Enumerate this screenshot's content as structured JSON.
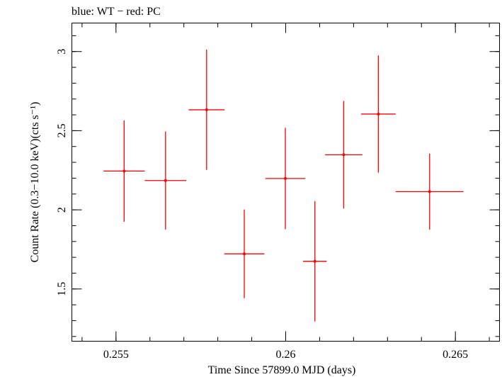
{
  "chart_data": {
    "type": "scatter",
    "title": "blue: WT − red: PC",
    "xlabel": "Time Since 57899.0 MJD (days)",
    "ylabel": "Count Rate (0.3−10.0 keV)(cts s⁻¹)",
    "xlim": [
      0.2537,
      0.2663
    ],
    "ylim": [
      1.17,
      3.18
    ],
    "x_ticks": [
      0.255,
      0.26,
      0.265
    ],
    "x_tick_labels": [
      "0.255",
      "0.26",
      "0.265"
    ],
    "x_minor_step": 0.001,
    "y_ticks": [
      1.5,
      2,
      2.5,
      3
    ],
    "y_tick_labels": [
      "1.5",
      "2",
      "2.5",
      "3"
    ],
    "y_minor_step": 0.1,
    "grid": false,
    "series": [
      {
        "name": "PC",
        "color": "#ff0000",
        "points": [
          {
            "x": 0.25524,
            "xerr": 0.00061,
            "y": 2.245,
            "yerr": 0.32
          },
          {
            "x": 0.25646,
            "xerr": 0.00061,
            "y": 2.185,
            "yerr": 0.31
          },
          {
            "x": 0.25767,
            "xerr": 0.00053,
            "y": 2.632,
            "yerr": 0.38
          },
          {
            "x": 0.25878,
            "xerr": 0.00059,
            "y": 1.722,
            "yerr": 0.28
          },
          {
            "x": 0.25999,
            "xerr": 0.00059,
            "y": 2.198,
            "yerr": 0.32
          },
          {
            "x": 0.26086,
            "xerr": 0.00035,
            "y": 1.675,
            "yerr": 0.38
          },
          {
            "x": 0.26171,
            "xerr": 0.00055,
            "y": 2.348,
            "yerr": 0.34
          },
          {
            "x": 0.26273,
            "xerr": 0.00051,
            "y": 2.605,
            "yerr": 0.37
          },
          {
            "x": 0.26424,
            "xerr": 0.001,
            "y": 2.115,
            "yerr": 0.24
          }
        ]
      }
    ]
  }
}
